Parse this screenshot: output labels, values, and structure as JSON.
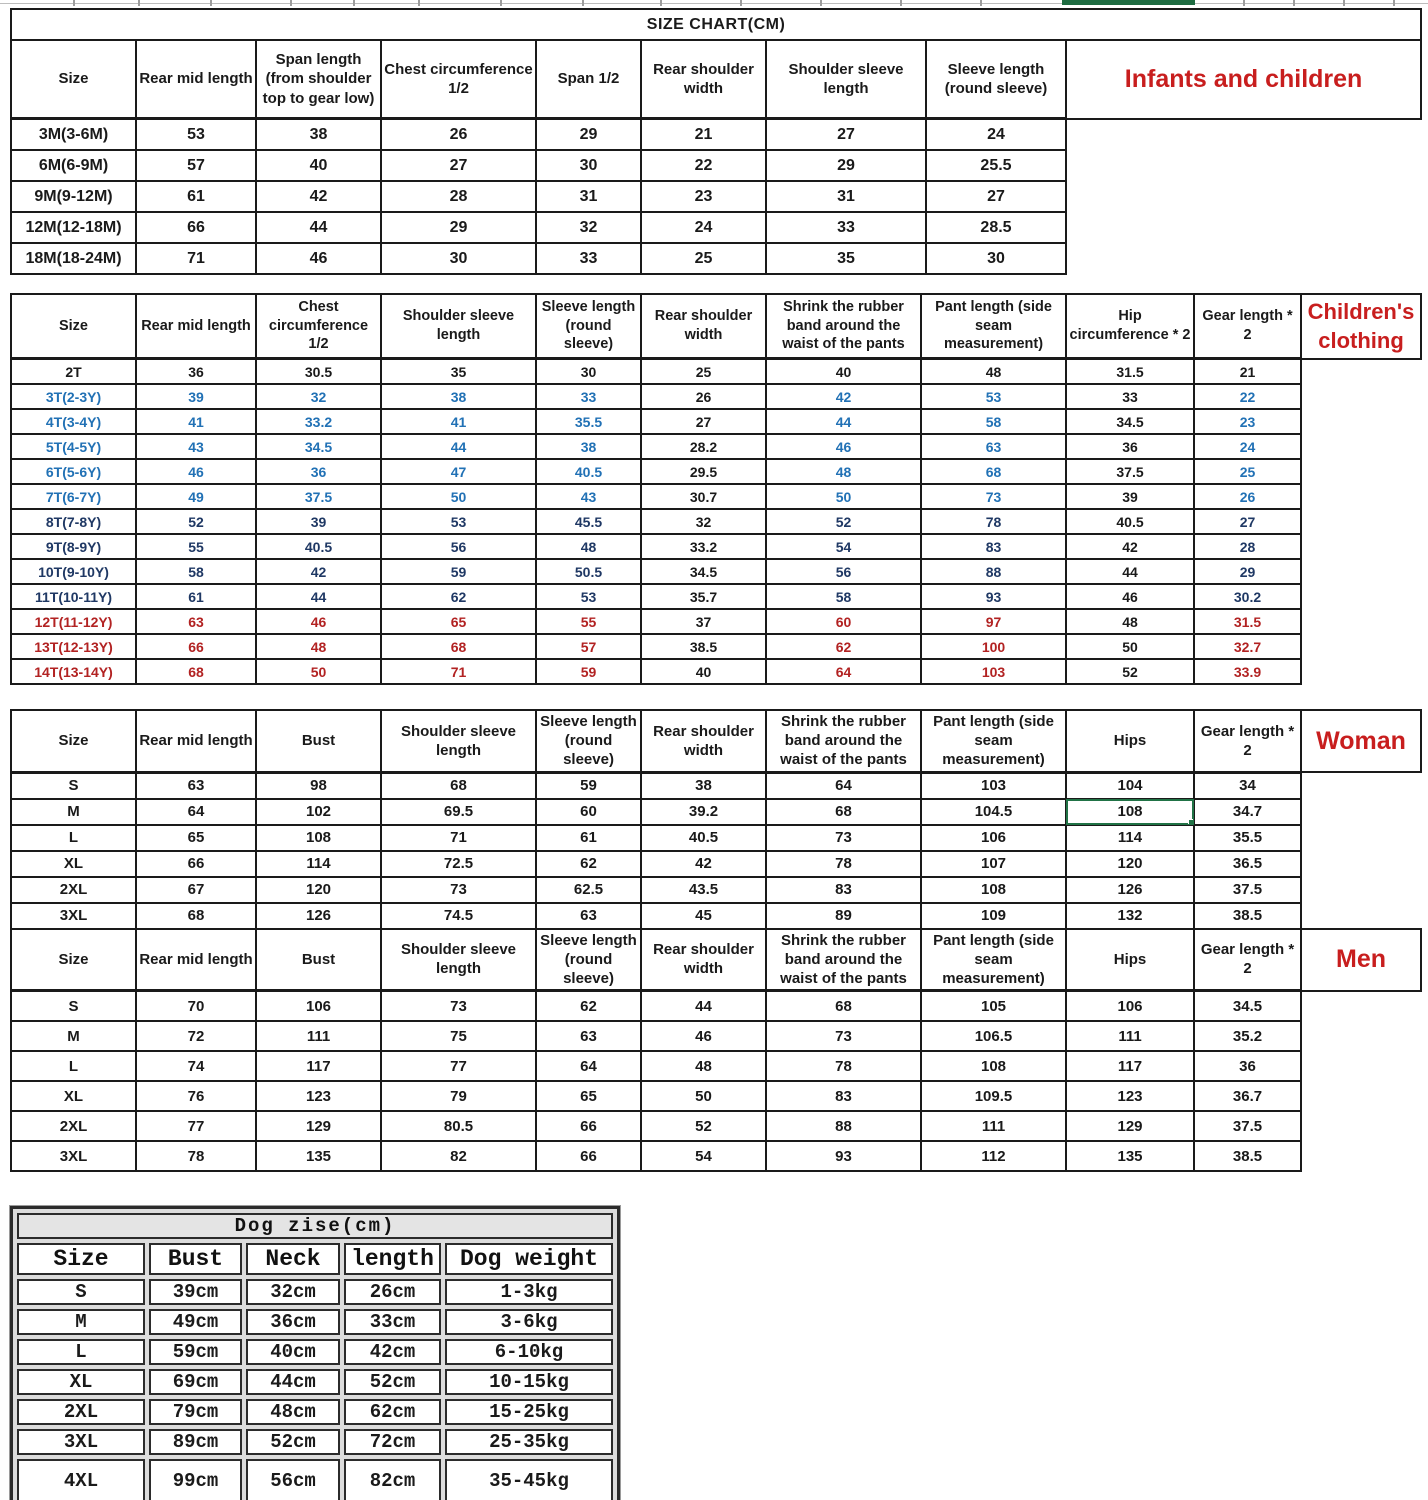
{
  "page": {
    "title": "SIZE CHART(CM)"
  },
  "colors": {
    "accent_blue": "#2171b5",
    "accent_navy": "#1f3864",
    "accent_red": "#b22222",
    "label_red": "#c81e1e",
    "selection_green": "#217346"
  },
  "tables": {
    "infants": {
      "label": "Infants and children",
      "headers": [
        "Size",
        "Rear mid length",
        "Span length (from shoulder top to gear low)",
        "Chest circumference 1/2",
        "Span 1/2",
        "Rear shoulder width",
        "Shoulder sleeve length",
        "Sleeve length (round sleeve)"
      ],
      "rows": [
        [
          "3M(3-6M)",
          "53",
          "38",
          "26",
          "29",
          "21",
          "27",
          "24"
        ],
        [
          "6M(6-9M)",
          "57",
          "40",
          "27",
          "30",
          "22",
          "29",
          "25.5"
        ],
        [
          "9M(9-12M)",
          "61",
          "42",
          "28",
          "31",
          "23",
          "31",
          "27"
        ],
        [
          "12M(12-18M)",
          "66",
          "44",
          "29",
          "32",
          "24",
          "33",
          "28.5"
        ],
        [
          "18M(18-24M)",
          "71",
          "46",
          "30",
          "33",
          "25",
          "35",
          "30"
        ]
      ]
    },
    "children": {
      "label": "Children's clothing",
      "headers": [
        "Size",
        "Rear mid length",
        "Chest circumference 1/2",
        "Shoulder sleeve length",
        "Sleeve length (round sleeve)",
        "Rear shoulder width",
        "Shrink the rubber band around the waist of the pants",
        "Pant length (side seam measurement)",
        "Hip circumference * 2",
        "Gear length * 2"
      ],
      "black_columns": [
        5,
        8
      ],
      "row_colors": [
        "black",
        "blue",
        "blue",
        "blue",
        "blue",
        "blue",
        "navy",
        "navy",
        "navy",
        "navy",
        "red",
        "red",
        "red"
      ],
      "rows": [
        [
          "2T",
          "36",
          "30.5",
          "35",
          "30",
          "25",
          "40",
          "48",
          "31.5",
          "21"
        ],
        [
          "3T(2-3Y)",
          "39",
          "32",
          "38",
          "33",
          "26",
          "42",
          "53",
          "33",
          "22"
        ],
        [
          "4T(3-4Y)",
          "41",
          "33.2",
          "41",
          "35.5",
          "27",
          "44",
          "58",
          "34.5",
          "23"
        ],
        [
          "5T(4-5Y)",
          "43",
          "34.5",
          "44",
          "38",
          "28.2",
          "46",
          "63",
          "36",
          "24"
        ],
        [
          "6T(5-6Y)",
          "46",
          "36",
          "47",
          "40.5",
          "29.5",
          "48",
          "68",
          "37.5",
          "25"
        ],
        [
          "7T(6-7Y)",
          "49",
          "37.5",
          "50",
          "43",
          "30.7",
          "50",
          "73",
          "39",
          "26"
        ],
        [
          "8T(7-8Y)",
          "52",
          "39",
          "53",
          "45.5",
          "32",
          "52",
          "78",
          "40.5",
          "27"
        ],
        [
          "9T(8-9Y)",
          "55",
          "40.5",
          "56",
          "48",
          "33.2",
          "54",
          "83",
          "42",
          "28"
        ],
        [
          "10T(9-10Y)",
          "58",
          "42",
          "59",
          "50.5",
          "34.5",
          "56",
          "88",
          "44",
          "29"
        ],
        [
          "11T(10-11Y)",
          "61",
          "44",
          "62",
          "53",
          "35.7",
          "58",
          "93",
          "46",
          "30.2"
        ],
        [
          "12T(11-12Y)",
          "63",
          "46",
          "65",
          "55",
          "37",
          "60",
          "97",
          "48",
          "31.5"
        ],
        [
          "13T(12-13Y)",
          "66",
          "48",
          "68",
          "57",
          "38.5",
          "62",
          "100",
          "50",
          "32.7"
        ],
        [
          "14T(13-14Y)",
          "68",
          "50",
          "71",
          "59",
          "40",
          "64",
          "103",
          "52",
          "33.9"
        ]
      ]
    },
    "woman": {
      "label": "Woman",
      "headers": [
        "Size",
        "Rear mid length",
        "Bust",
        "Shoulder sleeve length",
        "Sleeve length (round sleeve)",
        "Rear shoulder width",
        "Shrink the rubber band around the waist of the pants",
        "Pant length (side seam measurement)",
        "Hips",
        "Gear length * 2"
      ],
      "selected": {
        "row": 1,
        "col": 8
      },
      "rows": [
        [
          "S",
          "63",
          "98",
          "68",
          "59",
          "38",
          "64",
          "103",
          "104",
          "34"
        ],
        [
          "M",
          "64",
          "102",
          "69.5",
          "60",
          "39.2",
          "68",
          "104.5",
          "108",
          "34.7"
        ],
        [
          "L",
          "65",
          "108",
          "71",
          "61",
          "40.5",
          "73",
          "106",
          "114",
          "35.5"
        ],
        [
          "XL",
          "66",
          "114",
          "72.5",
          "62",
          "42",
          "78",
          "107",
          "120",
          "36.5"
        ],
        [
          "2XL",
          "67",
          "120",
          "73",
          "62.5",
          "43.5",
          "83",
          "108",
          "126",
          "37.5"
        ],
        [
          "3XL",
          "68",
          "126",
          "74.5",
          "63",
          "45",
          "89",
          "109",
          "132",
          "38.5"
        ]
      ]
    },
    "men": {
      "label": "Men",
      "headers": [
        "Size",
        "Rear mid length",
        "Bust",
        "Shoulder sleeve length",
        "Sleeve length (round sleeve)",
        "Rear shoulder width",
        "Shrink the rubber band around the waist of the pants",
        "Pant length (side seam measurement)",
        "Hips",
        "Gear length * 2"
      ],
      "rows": [
        [
          "S",
          "70",
          "106",
          "73",
          "62",
          "44",
          "68",
          "105",
          "106",
          "34.5"
        ],
        [
          "M",
          "72",
          "111",
          "75",
          "63",
          "46",
          "73",
          "106.5",
          "111",
          "35.2"
        ],
        [
          "L",
          "74",
          "117",
          "77",
          "64",
          "48",
          "78",
          "108",
          "117",
          "36"
        ],
        [
          "XL",
          "76",
          "123",
          "79",
          "65",
          "50",
          "83",
          "109.5",
          "123",
          "36.7"
        ],
        [
          "2XL",
          "77",
          "129",
          "80.5",
          "66",
          "52",
          "88",
          "111",
          "129",
          "37.5"
        ],
        [
          "3XL",
          "78",
          "135",
          "82",
          "66",
          "54",
          "93",
          "112",
          "135",
          "38.5"
        ]
      ]
    },
    "dog": {
      "title": "Dog zise(cm)",
      "headers": [
        "Size",
        "Bust",
        "Neck",
        "length",
        "Dog weight"
      ],
      "rows": [
        [
          "S",
          "39cm",
          "32cm",
          "26cm",
          "1-3kg"
        ],
        [
          "M",
          "49cm",
          "36cm",
          "33cm",
          "3-6kg"
        ],
        [
          "L",
          "59cm",
          "40cm",
          "42cm",
          "6-10kg"
        ],
        [
          "XL",
          "69cm",
          "44cm",
          "52cm",
          "10-15kg"
        ],
        [
          "2XL",
          "79cm",
          "48cm",
          "62cm",
          "15-25kg"
        ],
        [
          "3XL",
          "89cm",
          "52cm",
          "72cm",
          "25-35kg"
        ],
        [
          "4XL",
          "99cm",
          "56cm",
          "82cm",
          "35-45kg"
        ]
      ]
    }
  }
}
